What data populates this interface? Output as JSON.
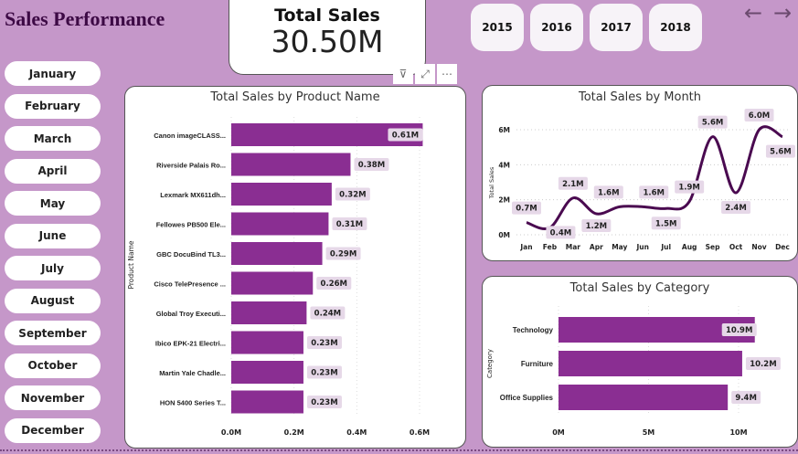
{
  "header": {
    "title": "Sales Performance",
    "kpi_label": "Total Sales",
    "kpi_value": "30.50M"
  },
  "years": [
    "2015",
    "2016",
    "2017",
    "2018"
  ],
  "nav": {
    "back": "←",
    "forward": "→"
  },
  "months": [
    "January",
    "February",
    "March",
    "April",
    "May",
    "June",
    "July",
    "August",
    "September",
    "October",
    "November",
    "December"
  ],
  "visual_icons": {
    "filter": "⊽",
    "focus": "⤢",
    "more": "⋯"
  },
  "colors": {
    "background": "#c597c9",
    "bar": "#8a2e92",
    "line": "#4a0a50",
    "label_bg": "#e6d8e8"
  },
  "chart_data": [
    {
      "type": "bar",
      "title": "Total Sales by Product Name",
      "ylabel": "Product Name",
      "xlabel": "",
      "orientation": "horizontal",
      "categories": [
        "Canon imageCLASS...",
        "Riverside Palais Ro...",
        "Lexmark MX611dh...",
        "Fellowes PB500 Ele...",
        "GBC DocuBind TL3...",
        "Cisco TelePresence ...",
        "Global Troy Executi...",
        "Ibico EPK-21 Electri...",
        "Martin Yale Chadle...",
        "HON 5400 Series T..."
      ],
      "values": [
        0.61,
        0.38,
        0.32,
        0.31,
        0.29,
        0.26,
        0.24,
        0.23,
        0.23,
        0.23
      ],
      "data_labels": [
        "0.61M",
        "0.38M",
        "0.32M",
        "0.31M",
        "0.29M",
        "0.26M",
        "0.24M",
        "0.23M",
        "0.23M",
        "0.23M"
      ],
      "xticks": [
        "0.0M",
        "0.2M",
        "0.4M",
        "0.6M"
      ],
      "xlim": [
        0,
        0.6
      ],
      "grid": true
    },
    {
      "type": "line",
      "title": "Total Sales by Month",
      "ylabel": "Total Sales",
      "xlabel": "",
      "categories": [
        "Jan",
        "Feb",
        "Mar",
        "Apr",
        "May",
        "Jun",
        "Jul",
        "Aug",
        "Sep",
        "Oct",
        "Nov",
        "Dec"
      ],
      "values": [
        0.7,
        0.4,
        2.1,
        1.2,
        1.6,
        1.6,
        1.5,
        1.9,
        5.6,
        2.4,
        6.0,
        5.6
      ],
      "data_labels": [
        "0.7M",
        "0.4M",
        "2.1M",
        "1.2M",
        "1.6M",
        "1.6M",
        "1.5M",
        "1.9M",
        "5.6M",
        "2.4M",
        "6.0M",
        "5.6M"
      ],
      "yticks": [
        "0M",
        "2M",
        "4M",
        "6M"
      ],
      "ylim": [
        0,
        6
      ],
      "grid": true
    },
    {
      "type": "bar",
      "title": "Total Sales by Category",
      "ylabel": "Category",
      "xlabel": "",
      "orientation": "horizontal",
      "categories": [
        "Technology",
        "Furniture",
        "Office Supplies"
      ],
      "values": [
        10.9,
        10.2,
        9.4
      ],
      "data_labels": [
        "10.9M",
        "10.2M",
        "9.4M"
      ],
      "xticks": [
        "0M",
        "5M",
        "10M"
      ],
      "xlim": [
        0,
        10
      ],
      "grid": true
    }
  ]
}
